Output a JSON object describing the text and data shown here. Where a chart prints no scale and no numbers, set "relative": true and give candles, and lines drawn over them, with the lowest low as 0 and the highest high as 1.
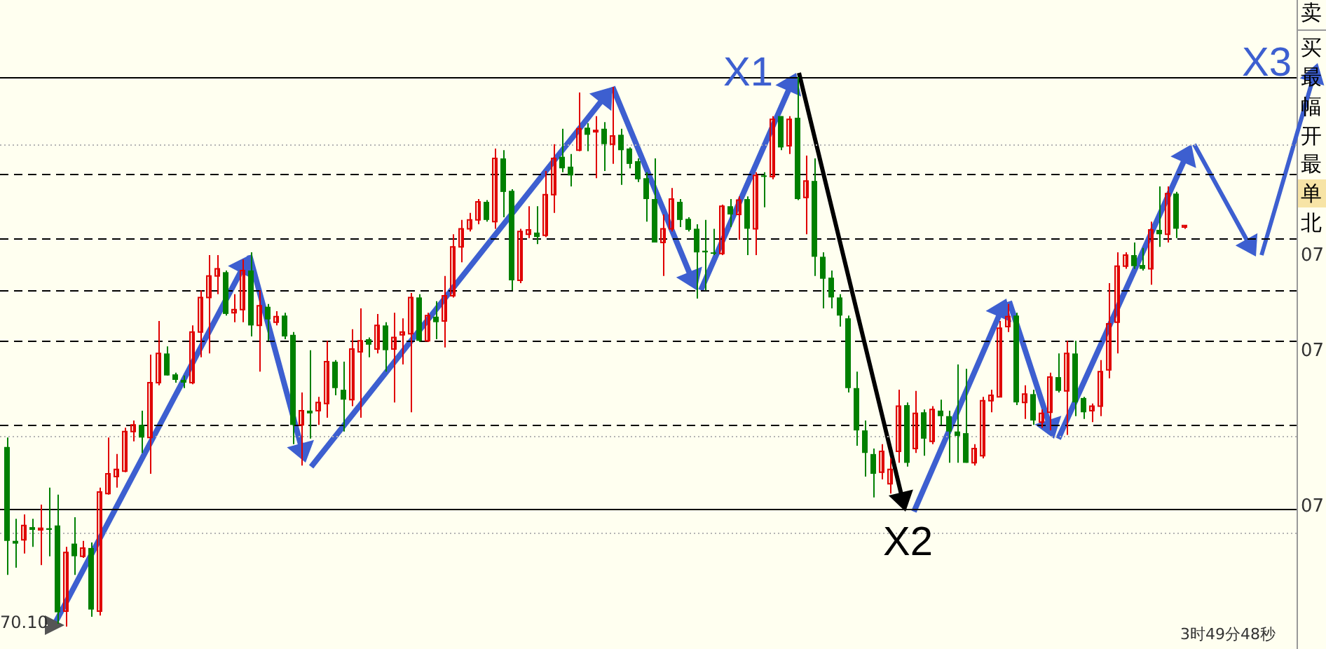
{
  "chart_data": {
    "type": "candlestick",
    "relative": true,
    "categories": [
      null,
      null,
      null,
      null,
      null,
      null,
      null,
      null,
      null,
      null,
      null,
      null,
      null,
      null,
      null,
      null,
      null,
      null,
      null,
      null,
      null,
      null,
      null,
      null,
      null,
      null,
      null,
      null,
      null,
      null,
      null,
      null,
      null,
      null,
      null,
      null,
      null,
      null,
      null,
      null,
      null,
      null,
      null,
      null,
      null,
      null,
      null,
      null,
      null,
      null,
      null,
      null,
      null,
      null,
      null,
      null,
      null,
      null,
      null,
      null,
      null,
      null,
      null,
      null,
      null,
      null,
      null,
      null,
      null,
      null,
      null,
      null,
      null,
      null,
      null,
      null,
      null,
      null,
      null,
      null,
      null,
      null,
      null,
      null,
      null,
      null,
      null,
      null,
      null,
      null,
      null,
      null,
      null,
      null,
      null,
      null,
      null,
      null,
      null,
      null,
      null,
      null,
      null,
      null,
      null,
      null,
      null,
      null,
      null,
      null,
      null,
      null,
      null,
      null,
      null,
      null,
      null,
      null,
      null,
      null,
      null,
      null,
      null,
      null,
      null,
      null,
      null,
      null,
      null,
      null,
      null,
      null,
      null,
      null,
      null,
      null,
      null,
      null,
      null,
      null,
      null
    ],
    "ohlc": [
      [
        0.327,
        0.344,
        0.094,
        0.156
      ],
      [
        0.156,
        0.196,
        0.107,
        0.151
      ],
      [
        0.158,
        0.204,
        0.133,
        0.184
      ],
      [
        0.181,
        0.196,
        0.145,
        0.176
      ],
      [
        0.176,
        0.222,
        0.112,
        0.179
      ],
      [
        0.179,
        0.253,
        0.128,
        0.176
      ],
      [
        0.184,
        0.24,
        0.005,
        0.026
      ],
      [
        0.028,
        0.145,
        0,
        0.135
      ],
      [
        0.151,
        0.199,
        0.094,
        0.128
      ],
      [
        0.128,
        0.156,
        0.125,
        0.143
      ],
      [
        0.143,
        0.153,
        0.018,
        0.031
      ],
      [
        0.028,
        0.253,
        0.02,
        0.245
      ],
      [
        0.242,
        0.344,
        0.24,
        0.278
      ],
      [
        0.273,
        0.314,
        0.253,
        0.286
      ],
      [
        0.283,
        0.362,
        0.281,
        0.355
      ],
      [
        0.355,
        0.375,
        0.337,
        0.367
      ],
      [
        0.367,
        0.393,
        0.316,
        0.344
      ],
      [
        0.344,
        0.495,
        0.278,
        0.444
      ],
      [
        0.444,
        0.556,
        0.439,
        0.497
      ],
      [
        0.497,
        0.51,
        0.457,
        0.457
      ],
      [
        0.459,
        0.462,
        0.444,
        0.449
      ],
      [
        0.449,
        0.457,
        0.434,
        0.444
      ],
      [
        0.444,
        0.548,
        0.441,
        0.536
      ],
      [
        0.536,
        0.612,
        0.49,
        0.599
      ],
      [
        0.599,
        0.676,
        0.497,
        0.638
      ],
      [
        0.638,
        0.676,
        0.605,
        0.651
      ],
      [
        0.645,
        0.648,
        0.566,
        0.569
      ],
      [
        0.571,
        0.605,
        0.554,
        0.577
      ],
      [
        0.577,
        0.668,
        0.554,
        0.648
      ],
      [
        0.648,
        0.681,
        0.528,
        0.548
      ],
      [
        0.548,
        0.612,
        0.464,
        0.584
      ],
      [
        0.582,
        0.587,
        0.52,
        0.559
      ],
      [
        0.554,
        0.574,
        0.548,
        0.564
      ],
      [
        0.566,
        0.571,
        0.523,
        0.528
      ],
      [
        0.531,
        0.536,
        0.332,
        0.367
      ],
      [
        0.367,
        0.426,
        0.293,
        0.393
      ],
      [
        0.393,
        0.503,
        0.342,
        0.388
      ],
      [
        0.393,
        0.418,
        0.367,
        0.408
      ],
      [
        0.406,
        0.52,
        0.38,
        0.482
      ],
      [
        0.482,
        0.485,
        0.421,
        0.434
      ],
      [
        0.431,
        0.482,
        0.355,
        0.413
      ],
      [
        0.413,
        0.541,
        0.401,
        0.505
      ],
      [
        0.5,
        0.579,
        0.38,
        0.52
      ],
      [
        0.523,
        0.526,
        0.49,
        0.513
      ],
      [
        0.505,
        0.569,
        0.497,
        0.548
      ],
      [
        0.548,
        0.554,
        0.464,
        0.503
      ],
      [
        0.505,
        0.571,
        0.408,
        0.526
      ],
      [
        0.531,
        0.561,
        0.477,
        0.536
      ],
      [
        0.533,
        0.607,
        0.39,
        0.599
      ],
      [
        0.599,
        0.605,
        0.518,
        0.52
      ],
      [
        0.52,
        0.571,
        0.518,
        0.566
      ],
      [
        0.564,
        0.592,
        0.523,
        0.554
      ],
      [
        0.556,
        0.638,
        0.508,
        0.602
      ],
      [
        0.602,
        0.714,
        0.599,
        0.691
      ],
      [
        0.691,
        0.74,
        0.663,
        0.724
      ],
      [
        0.724,
        0.753,
        0.719,
        0.74
      ],
      [
        0.74,
        0.778,
        0.732,
        0.773
      ],
      [
        0.773,
        0.776,
        0.737,
        0.74
      ],
      [
        0.737,
        0.87,
        0.724,
        0.852
      ],
      [
        0.852,
        0.867,
        0.745,
        0.791
      ],
      [
        0.793,
        0.796,
        0.612,
        0.63
      ],
      [
        0.63,
        0.724,
        0.625,
        0.719
      ],
      [
        0.714,
        0.765,
        0.707,
        0.722
      ],
      [
        0.717,
        0.765,
        0.696,
        0.709
      ],
      [
        0.712,
        0.829,
        0.709,
        0.786
      ],
      [
        0.786,
        0.878,
        0.753,
        0.852
      ],
      [
        0.855,
        0.906,
        0.827,
        0.834
      ],
      [
        0.837,
        0.86,
        0.801,
        0.821
      ],
      [
        0.867,
        0.972,
        0.865,
        0.906
      ],
      [
        0.908,
        0.916,
        0.865,
        0.895
      ],
      [
        0.901,
        0.929,
        0.816,
        0.903
      ],
      [
        0.906,
        0.918,
        0.829,
        0.878
      ],
      [
        0.878,
        0.982,
        0.842,
        0.893
      ],
      [
        0.895,
        0.906,
        0.804,
        0.867
      ],
      [
        0.87,
        0.872,
        0.834,
        0.842
      ],
      [
        0.847,
        0.852,
        0.809,
        0.814
      ],
      [
        0.816,
        0.827,
        0.737,
        0.778
      ],
      [
        0.778,
        0.852,
        0.699,
        0.699
      ],
      [
        0.699,
        0.75,
        0.638,
        0.724
      ],
      [
        0.724,
        0.798,
        0.719,
        0.778
      ],
      [
        0.773,
        0.778,
        0.727,
        0.74
      ],
      [
        0.742,
        0.745,
        0.719,
        0.722
      ],
      [
        0.724,
        0.732,
        0.597,
        0.681
      ],
      [
        0.684,
        0.74,
        0.612,
        0.681
      ],
      [
        0.681,
        0.724,
        0.676,
        0.679
      ],
      [
        0.679,
        0.768,
        0.676,
        0.765
      ],
      [
        0.765,
        0.778,
        0.727,
        0.75
      ],
      [
        0.75,
        0.783,
        0.704,
        0.776
      ],
      [
        0.778,
        0.783,
        0.676,
        0.724
      ],
      [
        0.724,
        0.827,
        0.676,
        0.821
      ],
      [
        0.821,
        0.827,
        0.763,
        0.819
      ],
      [
        0.819,
        0.929,
        0.814,
        0.923
      ],
      [
        0.929,
        0.929,
        0.867,
        0.872
      ],
      [
        0.875,
        0.929,
        0.86,
        0.923
      ],
      [
        0.926,
        1,
        0.776,
        0.778
      ],
      [
        0.781,
        0.857,
        0.714,
        0.811
      ],
      [
        0.811,
        0.852,
        0.638,
        0.673
      ],
      [
        0.673,
        0.681,
        0.579,
        0.633
      ],
      [
        0.635,
        0.648,
        0.579,
        0.599
      ],
      [
        0.599,
        0.605,
        0.546,
        0.566
      ],
      [
        0.561,
        0.566,
        0.426,
        0.434
      ],
      [
        0.434,
        0.464,
        0.329,
        0.357
      ],
      [
        0.357,
        0.375,
        0.273,
        0.316
      ],
      [
        0.314,
        0.324,
        0.235,
        0.278
      ],
      [
        0.281,
        0.332,
        0.268,
        0.319
      ],
      [
        0.26,
        0.306,
        0.242,
        0.286
      ],
      [
        0.319,
        0.431,
        0.298,
        0.401
      ],
      [
        0.403,
        0.408,
        0.291,
        0.298
      ],
      [
        0.324,
        0.429,
        0.316,
        0.388
      ],
      [
        0.39,
        0.395,
        0.311,
        0.342
      ],
      [
        0.337,
        0.401,
        0.332,
        0.395
      ],
      [
        0.393,
        0.413,
        0.367,
        0.383
      ],
      [
        0.383,
        0.393,
        0.298,
        0.355
      ],
      [
        0.355,
        0.477,
        0.298,
        0.347
      ],
      [
        0.352,
        0.469,
        0.298,
        0.298
      ],
      [
        0.298,
        0.332,
        0.293,
        0.324
      ],
      [
        0.311,
        0.418,
        0.306,
        0.411
      ],
      [
        0.411,
        0.431,
        0.39,
        0.421
      ],
      [
        0.418,
        0.556,
        0.418,
        0.543
      ],
      [
        0.546,
        0.587,
        0.536,
        0.564
      ],
      [
        0.566,
        0.571,
        0.403,
        0.408
      ],
      [
        0.408,
        0.439,
        0.378,
        0.423
      ],
      [
        0.423,
        0.431,
        0.367,
        0.375
      ],
      [
        0.372,
        0.395,
        0.362,
        0.388
      ],
      [
        0.39,
        0.462,
        0.357,
        0.454
      ],
      [
        0.454,
        0.497,
        0.426,
        0.429
      ],
      [
        0.429,
        0.52,
        0.349,
        0.497
      ],
      [
        0.497,
        0.52,
        0.383,
        0.408
      ],
      [
        0.416,
        0.418,
        0.378,
        0.39
      ],
      [
        0.393,
        0.406,
        0.372,
        0.401
      ],
      [
        0.401,
        0.485,
        0.383,
        0.464
      ],
      [
        0.467,
        0.625,
        0.452,
        0.551
      ],
      [
        0.554,
        0.681,
        0.497,
        0.656
      ],
      [
        0.656,
        0.681,
        0.651,
        0.676
      ],
      [
        0.676,
        0.699,
        0.651,
        0.656
      ],
      [
        0.658,
        0.689,
        0.648,
        0.651
      ],
      [
        0.651,
        0.737,
        0.622,
        0.722
      ],
      [
        0.722,
        0.801,
        0.691,
        0.714
      ],
      [
        0.714,
        0.801,
        0.699,
        0.788
      ],
      [
        0.788,
        0.791,
        0.707,
        0.724
      ],
      [
        0.727,
        0.73,
        0.724,
        0.73
      ]
    ],
    "colors": [
      "#008000",
      "#008000",
      "#e00000",
      "#008000",
      "#e00000",
      "#008000",
      "#008000",
      "#e00000",
      "#008000",
      "#e00000",
      "#008000",
      "#e00000",
      "#e00000",
      "#e00000",
      "#e00000",
      "#e00000",
      "#008000",
      "#e00000",
      "#e00000",
      "#008000",
      "#008000",
      "#008000",
      "#e00000",
      "#e00000",
      "#e00000",
      "#e00000",
      "#008000",
      "#e00000",
      "#e00000",
      "#008000",
      "#e00000",
      "#008000",
      "#e00000",
      "#008000",
      "#008000",
      "#e00000",
      "#008000",
      "#e00000",
      "#e00000",
      "#008000",
      "#008000",
      "#e00000",
      "#e00000",
      "#008000",
      "#e00000",
      "#008000",
      "#e00000",
      "#e00000",
      "#e00000",
      "#008000",
      "#e00000",
      "#008000",
      "#e00000",
      "#e00000",
      "#e00000",
      "#e00000",
      "#e00000",
      "#008000",
      "#e00000",
      "#008000",
      "#008000",
      "#e00000",
      "#e00000",
      "#008000",
      "#e00000",
      "#e00000",
      "#008000",
      "#008000",
      "#e00000",
      "#008000",
      "#e00000",
      "#008000",
      "#e00000",
      "#008000",
      "#008000",
      "#008000",
      "#008000",
      "#008000",
      "#e00000",
      "#e00000",
      "#008000",
      "#008000",
      "#008000",
      "#008000",
      "#008000",
      "#e00000",
      "#008000",
      "#e00000",
      "#008000",
      "#e00000",
      "#008000",
      "#e00000",
      "#008000",
      "#e00000",
      "#008000",
      "#e00000",
      "#008000",
      "#008000",
      "#008000",
      "#008000",
      "#008000",
      "#008000",
      "#008000",
      "#008000",
      "#e00000",
      "#e00000",
      "#e00000",
      "#008000",
      "#e00000",
      "#008000",
      "#e00000",
      "#008000",
      "#008000",
      "#008000",
      "#008000",
      "#e00000",
      "#e00000",
      "#e00000",
      "#e00000",
      "#e00000",
      "#008000",
      "#e00000",
      "#008000",
      "#e00000",
      "#e00000",
      "#008000",
      "#e00000",
      "#008000",
      "#008000",
      "#e00000",
      "#e00000",
      "#e00000",
      "#e00000",
      "#e00000",
      "#008000",
      "#008000",
      "#e00000",
      "#008000",
      "#e00000",
      "#008000",
      "#e00000"
    ],
    "ref_lines": [
      {
        "axis": "y",
        "value": 1,
        "color": "#000000",
        "line_style": "solid"
      },
      {
        "axis": "y",
        "value": 0.878,
        "color": "#b4b4b4",
        "line_style": "dotted"
      },
      {
        "axis": "y",
        "value": 0.824,
        "color": "#000000",
        "line_style": "dashed"
      },
      {
        "axis": "y",
        "value": 0.707,
        "color": "#000000",
        "line_style": "dashed"
      },
      {
        "axis": "y",
        "value": 0.612,
        "color": "#000000",
        "line_style": "dashed"
      },
      {
        "axis": "y",
        "value": 0.52,
        "color": "#000000",
        "line_style": "dashed"
      },
      {
        "axis": "y",
        "value": 0.367,
        "color": "#000000",
        "line_style": "dashed"
      },
      {
        "axis": "y",
        "value": 0.347,
        "color": "#b4b4b4",
        "line_style": "dotted"
      },
      {
        "axis": "y",
        "value": 0.214,
        "color": "#000000",
        "line_style": "solid"
      },
      {
        "axis": "y",
        "value": 0.171,
        "color": "#b4b4b4",
        "line_style": "dotted"
      }
    ],
    "annotations": [
      "X1",
      "X2",
      "X3",
      "70.10",
      "3时49分48秒",
      "卖",
      "买",
      "最",
      "幅",
      "开",
      "最",
      "单",
      "北",
      "07",
      "07",
      "07"
    ]
  }
}
